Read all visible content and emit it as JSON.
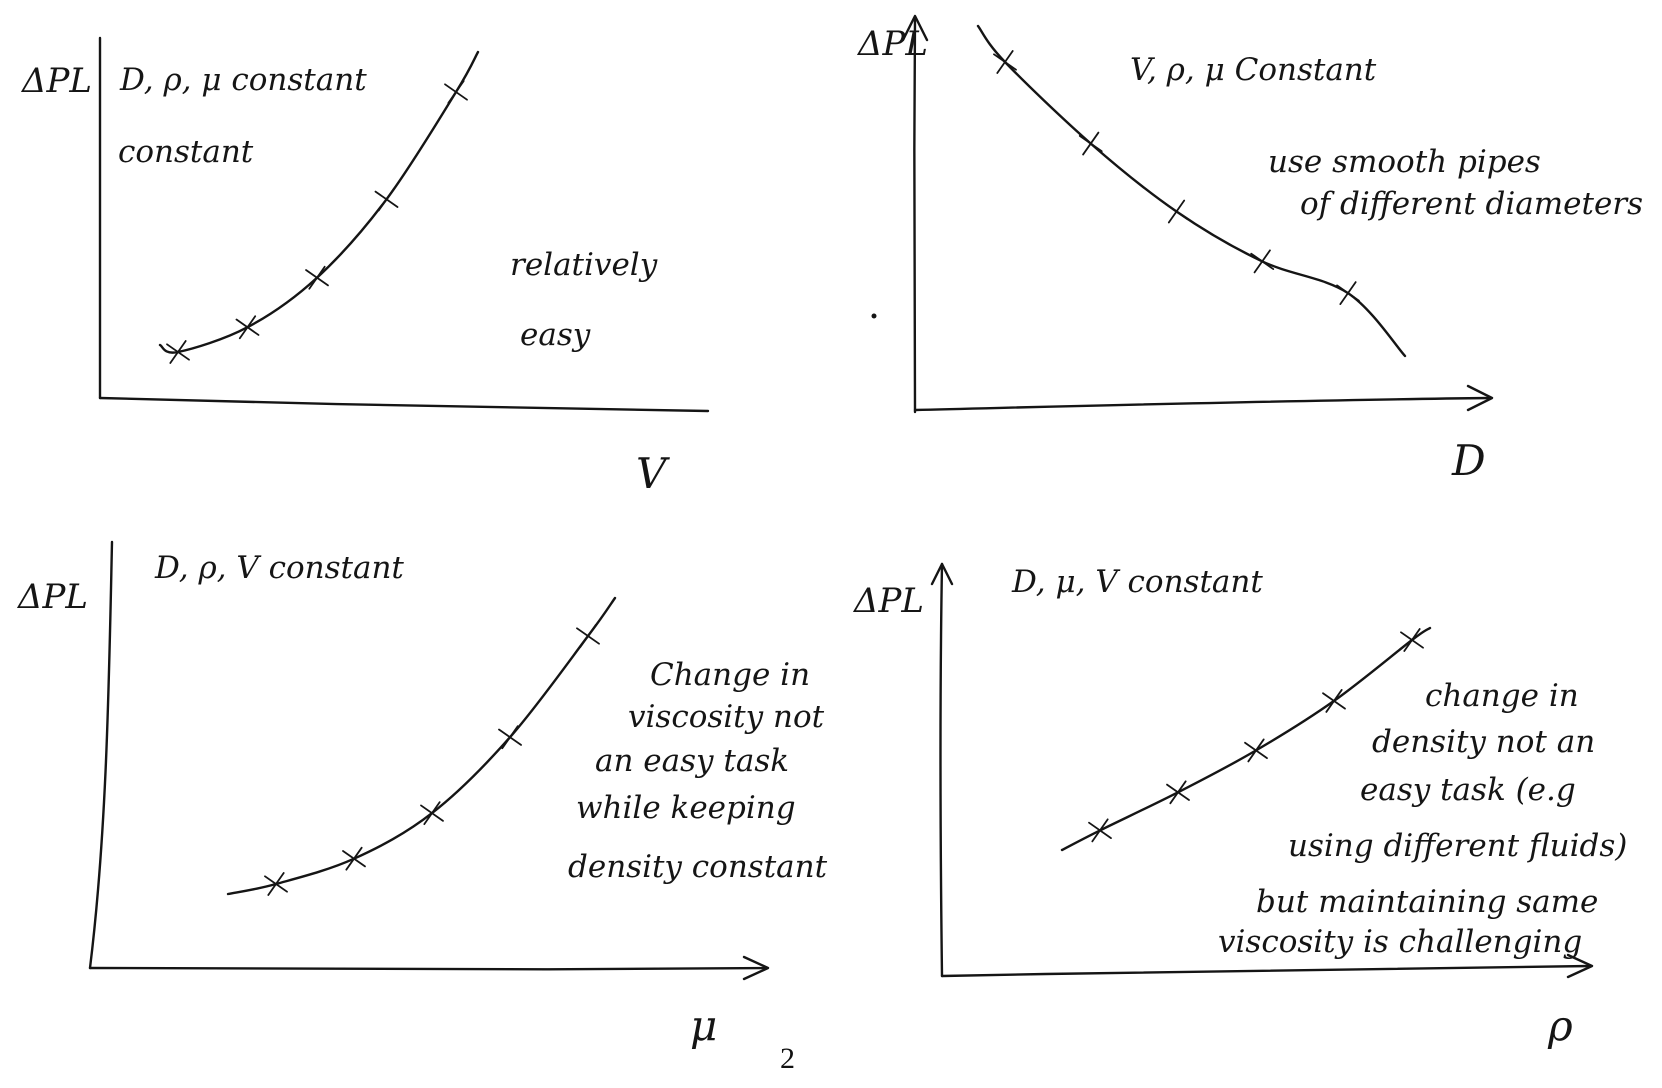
{
  "page_number": "2",
  "charts": [
    {
      "title": "D, ρ, μ constant",
      "ylabel": "ΔPL",
      "xlabel": "V",
      "note_lines": [
        "relatively",
        "easy"
      ]
    },
    {
      "title": "V, ρ, μ Constant",
      "ylabel": "ΔPL",
      "xlabel": "D",
      "note_lines": [
        "use smooth pipes",
        "of different diameters"
      ]
    },
    {
      "title": "D, ρ, V constant",
      "ylabel": "ΔPL",
      "xlabel": "μ",
      "note_lines": [
        "Change in",
        "viscosity not",
        "an easy task",
        "while keeping",
        "density constant"
      ]
    },
    {
      "title": "D, μ, V constant",
      "ylabel": "ΔPL",
      "xlabel": "ρ",
      "note_lines": [
        "change in",
        "density not an",
        "easy task (e.g",
        "using different fluids)",
        "but maintaining same",
        "viscosity is challenging"
      ]
    }
  ],
  "chart_data": [
    {
      "type": "line",
      "title": "D, ρ, μ constant",
      "xlabel": "V",
      "ylabel": "ΔPL",
      "trend": "increasing, concave up",
      "x": [
        1,
        2,
        3,
        4,
        5
      ],
      "y": [
        1.0,
        1.6,
        2.8,
        4.7,
        7.3
      ]
    },
    {
      "type": "line",
      "title": "V, ρ, μ Constant",
      "xlabel": "D",
      "ylabel": "ΔPL",
      "trend": "decreasing, convex",
      "x": [
        1,
        2,
        3,
        4,
        5
      ],
      "y": [
        7.4,
        5.6,
        4.1,
        3.0,
        2.3
      ]
    },
    {
      "type": "line",
      "title": "D, ρ, V constant",
      "xlabel": "μ",
      "ylabel": "ΔPL",
      "trend": "increasing, concave up",
      "x": [
        1,
        2,
        3,
        4,
        5
      ],
      "y": [
        1.0,
        1.5,
        2.4,
        3.9,
        5.9
      ]
    },
    {
      "type": "line",
      "title": "D, μ, V constant",
      "xlabel": "ρ",
      "ylabel": "ΔPL",
      "trend": "increasing, slightly concave up",
      "x": [
        1,
        2,
        3,
        4,
        5
      ],
      "y": [
        1.2,
        2.2,
        3.3,
        4.6,
        6.2
      ]
    }
  ]
}
